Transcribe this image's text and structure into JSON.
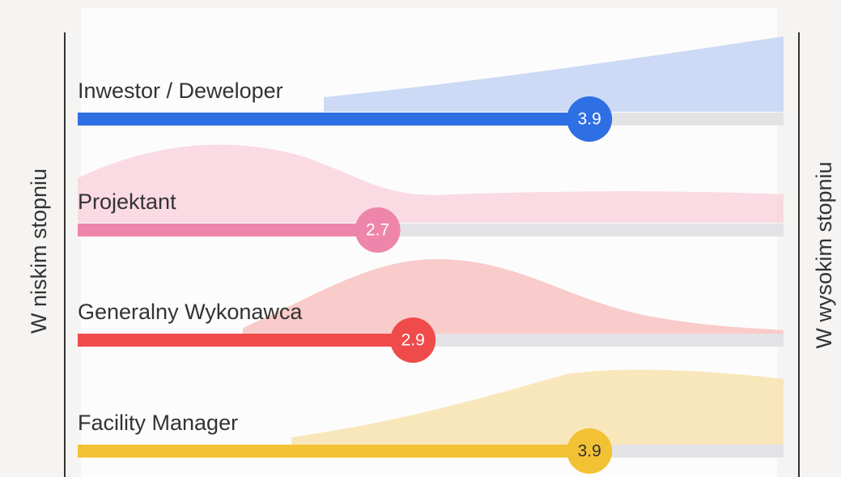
{
  "chart_data": {
    "type": "bar",
    "orientation": "horizontal",
    "left_label": "W niskim stopniu",
    "right_label": "W wysokim stopniu",
    "categories": [
      "Inwestor / Deweloper",
      "Projektant",
      "Generalny Wykonawca",
      "Facility Manager"
    ],
    "values": [
      3.9,
      2.7,
      2.9,
      3.9
    ],
    "colors": [
      "#2f6fe4",
      "#ee85aa",
      "#ef4b4b",
      "#f2c234"
    ],
    "xlim": [
      1,
      5
    ]
  }
}
